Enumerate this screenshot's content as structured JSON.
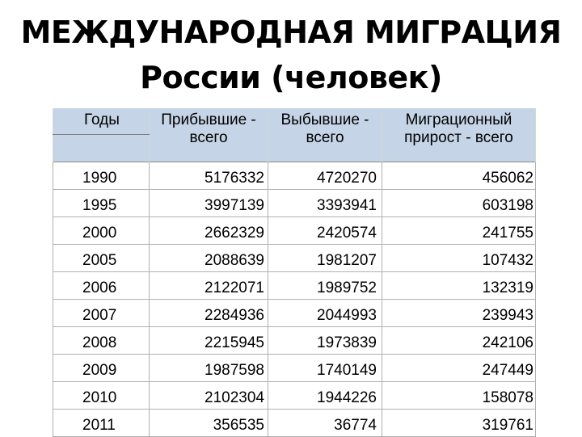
{
  "title": {
    "line1": "МЕЖДУНАРОДНАЯ МИГРАЦИЯ",
    "line2": "России (человек)"
  },
  "table": {
    "headers": {
      "years": "Годы",
      "arrived": "Прибывшие - всего",
      "departed": "Выбывшие - всего",
      "growth": "Миграционный прирост - всего"
    },
    "rows": [
      {
        "year": "1990",
        "arrived": "5176332",
        "departed": "4720270",
        "growth": "456062"
      },
      {
        "year": "1995",
        "arrived": "3997139",
        "departed": "3393941",
        "growth": "603198"
      },
      {
        "year": "2000",
        "arrived": "2662329",
        "departed": "2420574",
        "growth": "241755"
      },
      {
        "year": "2005",
        "arrived": "2088639",
        "departed": "1981207",
        "growth": "107432"
      },
      {
        "year": "2006",
        "arrived": "2122071",
        "departed": "1989752",
        "growth": "132319"
      },
      {
        "year": "2007",
        "arrived": "2284936",
        "departed": "2044993",
        "growth": "239943"
      },
      {
        "year": "2008",
        "arrived": "2215945",
        "departed": "1973839",
        "growth": "242106"
      },
      {
        "year": "2009",
        "arrived": "1987598",
        "departed": "1740149",
        "growth": "247449"
      },
      {
        "year": "2010",
        "arrived": "2102304",
        "departed": "1944226",
        "growth": "158078"
      },
      {
        "year": "2011",
        "arrived": "356535",
        "departed": "36774",
        "growth": "319761"
      }
    ]
  },
  "colors": {
    "header_background": "#c5d4e6",
    "text": "#000000",
    "background": "#ffffff"
  }
}
